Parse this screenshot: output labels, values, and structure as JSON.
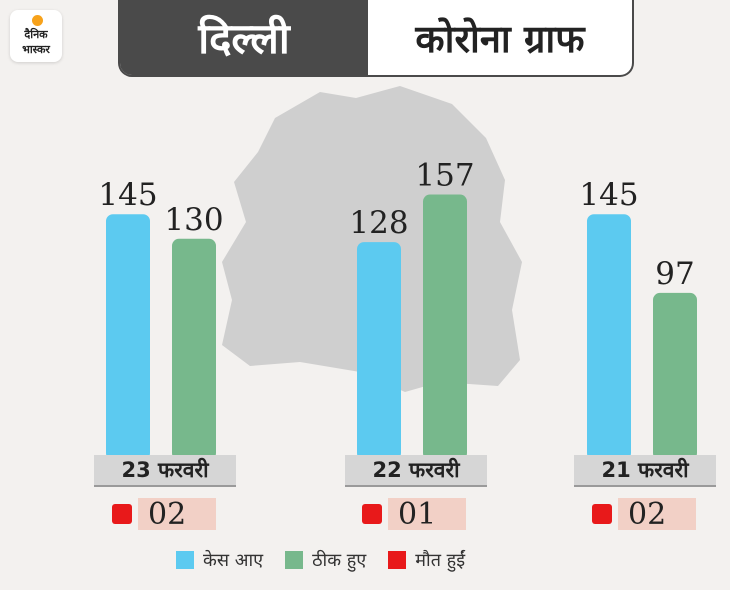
{
  "logo": {
    "line1": "दैनिक",
    "line2": "भास्कर"
  },
  "header": {
    "city": "दिल्ली",
    "title": "कोरोना ग्राफ"
  },
  "colors": {
    "cases": "#5ccaf0",
    "recovered": "#77b88c",
    "deaths": "#e8191a"
  },
  "legend": {
    "cases": "केस आए",
    "recovered": "ठीक हुए",
    "deaths": "मौत हुईं"
  },
  "chart_data": {
    "type": "bar",
    "categories": [
      "23 फरवरी",
      "22 फरवरी",
      "21 फरवरी"
    ],
    "series": [
      {
        "name": "केस आए",
        "values": [
          145,
          128,
          145
        ]
      },
      {
        "name": "ठीक हुए",
        "values": [
          130,
          157,
          97
        ]
      }
    ],
    "deaths": [
      "02",
      "01",
      "02"
    ],
    "ylim": [
      0,
      180
    ],
    "grid": false,
    "legend_position": "bottom"
  }
}
